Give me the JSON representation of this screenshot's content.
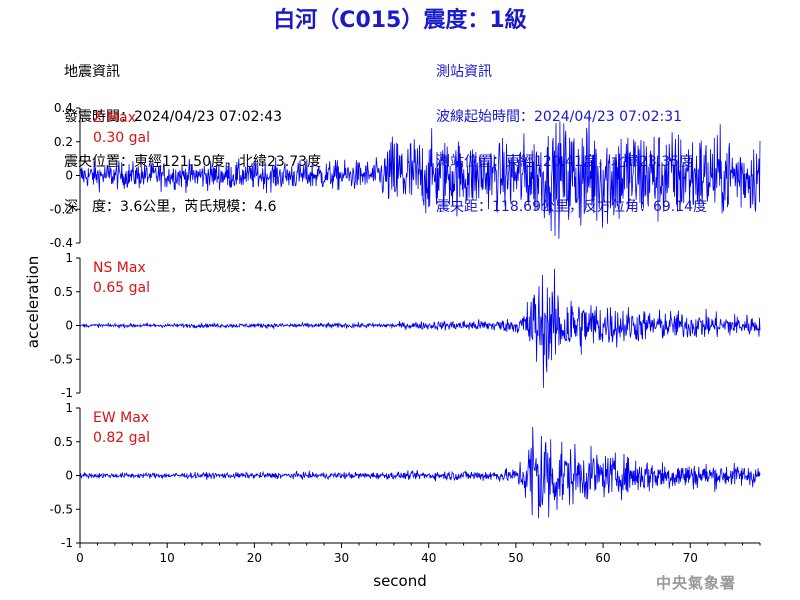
{
  "title": "白河（C015）震度：1級",
  "quake_info": {
    "heading": "地震資訊",
    "time": "發震時間：2024/04/23 07:02:43",
    "location": "震央位置：東經121.50度，北緯23.73度",
    "depth_mag": "深　度：3.6公里，芮氏規模：4.6"
  },
  "station_info": {
    "heading": "測站資訊",
    "wave_start": "波線起始時間：2024/04/23 07:02:31",
    "location": "測站位置：東經120.41度，北緯23.35度",
    "distance": "震央距：118.69公里，反方位角：69.14度"
  },
  "agency": "中央氣象署",
  "chart_data": {
    "type": "line",
    "xlabel": "second",
    "ylabel": "acceleration",
    "xlim": [
      0,
      78
    ],
    "xticks": [
      "0",
      "10",
      "20",
      "30",
      "40",
      "50",
      "60",
      "70"
    ],
    "panels": [
      {
        "id": "z",
        "max_label": "Z Max",
        "max_value": "0.30 gal",
        "ylim": [
          -0.4,
          0.4
        ],
        "yticks": [
          "0.4",
          "0.2",
          "0",
          "-0.2",
          "-0.4"
        ],
        "envelope": [
          [
            0,
            0.06
          ],
          [
            34,
            0.07
          ],
          [
            35,
            0.12
          ],
          [
            36,
            0.2
          ],
          [
            42,
            0.17
          ],
          [
            48,
            0.15
          ],
          [
            53,
            0.2
          ],
          [
            56,
            0.26
          ],
          [
            62,
            0.24
          ],
          [
            70,
            0.2
          ],
          [
            78,
            0.17
          ]
        ]
      },
      {
        "id": "ns",
        "max_label": "NS Max",
        "max_value": "0.65 gal",
        "ylim": [
          -1,
          1
        ],
        "yticks": [
          "1",
          "0.5",
          "0",
          "-0.5",
          "-1"
        ],
        "envelope": [
          [
            0,
            0.02
          ],
          [
            35,
            0.03
          ],
          [
            40,
            0.05
          ],
          [
            50,
            0.08
          ],
          [
            51,
            0.2
          ],
          [
            52,
            0.5
          ],
          [
            53,
            0.6
          ],
          [
            55,
            0.45
          ],
          [
            58,
            0.3
          ],
          [
            65,
            0.18
          ],
          [
            78,
            0.12
          ]
        ]
      },
      {
        "id": "ew",
        "max_label": "EW Max",
        "max_value": "0.82 gal",
        "ylim": [
          -1,
          1
        ],
        "yticks": [
          "1",
          "0.5",
          "0",
          "-0.5",
          "-1"
        ],
        "envelope": [
          [
            0,
            0.03
          ],
          [
            35,
            0.04
          ],
          [
            45,
            0.06
          ],
          [
            50,
            0.08
          ],
          [
            51,
            0.3
          ],
          [
            52.3,
            0.8
          ],
          [
            53.5,
            0.6
          ],
          [
            56,
            0.35
          ],
          [
            60,
            0.25
          ],
          [
            70,
            0.15
          ],
          [
            78,
            0.12
          ]
        ]
      }
    ]
  }
}
